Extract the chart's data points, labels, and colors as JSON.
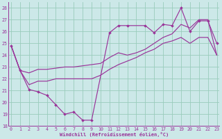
{
  "title": "Windchill (Refroidissement éolien,°C)",
  "bg_color": "#cce8e8",
  "line_color": "#993399",
  "grid_color": "#99ccbb",
  "xlim": [
    -0.3,
    23.3
  ],
  "ylim": [
    18,
    28.5
  ],
  "xticks": [
    0,
    1,
    2,
    3,
    4,
    5,
    6,
    7,
    8,
    9,
    10,
    11,
    12,
    13,
    14,
    15,
    16,
    17,
    18,
    19,
    20,
    21,
    22,
    23
  ],
  "yticks": [
    18,
    19,
    20,
    21,
    22,
    23,
    24,
    25,
    26,
    27,
    28
  ],
  "main_x": [
    0,
    1,
    2,
    3,
    4,
    5,
    6,
    7,
    8,
    9,
    11,
    12,
    13,
    15,
    16,
    17,
    18,
    19,
    20,
    21,
    22,
    23
  ],
  "main_y": [
    24.8,
    22.7,
    21.1,
    20.9,
    20.6,
    19.8,
    19.0,
    19.2,
    18.5,
    18.5,
    25.9,
    26.5,
    26.5,
    26.5,
    25.9,
    26.6,
    26.5,
    28.0,
    26.0,
    26.9,
    26.9,
    25.0
  ],
  "upper_x": [
    0,
    1,
    2,
    3,
    4,
    5,
    6,
    7,
    8,
    9,
    10,
    11,
    12,
    13,
    14,
    15,
    16,
    17,
    18,
    19,
    20,
    21,
    22,
    23
  ],
  "upper_y": [
    24.8,
    22.7,
    22.5,
    22.8,
    22.8,
    22.9,
    23.0,
    23.0,
    23.1,
    23.2,
    23.3,
    23.8,
    24.2,
    24.0,
    24.2,
    24.5,
    25.0,
    25.5,
    25.8,
    26.6,
    26.3,
    27.0,
    27.0,
    24.0
  ],
  "lower_x": [
    0,
    1,
    2,
    3,
    4,
    5,
    6,
    7,
    8,
    9,
    10,
    11,
    12,
    13,
    14,
    15,
    16,
    17,
    18,
    19,
    20,
    21,
    22,
    23
  ],
  "lower_y": [
    24.8,
    22.7,
    21.5,
    21.8,
    21.8,
    22.0,
    22.0,
    22.0,
    22.0,
    22.0,
    22.3,
    22.8,
    23.2,
    23.5,
    23.8,
    24.2,
    24.5,
    25.0,
    25.2,
    25.5,
    25.0,
    25.5,
    25.5,
    24.0
  ]
}
